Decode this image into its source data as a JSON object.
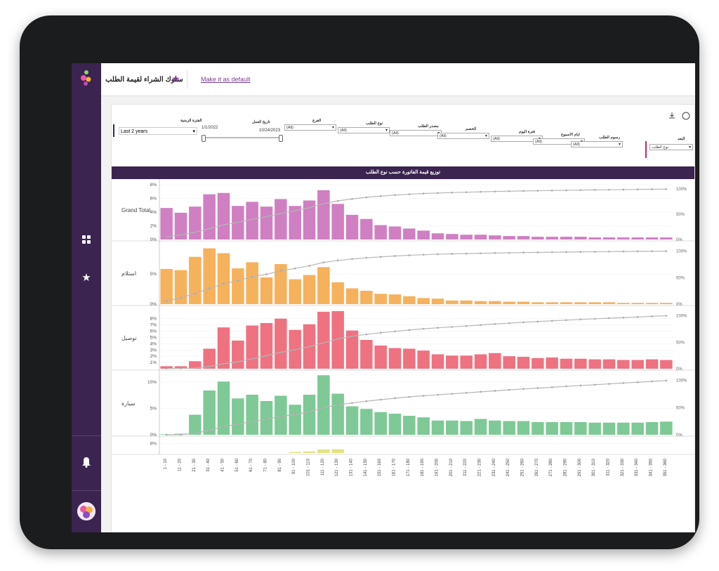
{
  "topbar": {
    "title": "سلوك الشراء لقيمة الطلب",
    "make_default": "Make it as default"
  },
  "filters": {
    "period_label": "الفترة الزمنية",
    "period_value": "Last 2 years",
    "date_label": "تاريخ العمل",
    "date_start": "1/1/2022",
    "date_end": "10/24/2023",
    "items": [
      {
        "label": "الفرع",
        "value": "(All)"
      },
      {
        "label": "نوع الطلب",
        "value": "(All)"
      },
      {
        "label": "مصدر الطلب",
        "value": "(All)"
      },
      {
        "label": "الخصم",
        "value": "(All)"
      },
      {
        "label": "فترة اليوم",
        "value": "(All)"
      },
      {
        "label": "ايام الاسبوع",
        "value": "(All)"
      },
      {
        "label": "رسوم الطلب",
        "value": "(All)"
      }
    ],
    "measure_label": "البعد",
    "measure_value": "نوع الطلب"
  },
  "chart_data": {
    "type": "bar",
    "title": "توزيع قيمة الفاتورة حسب نوع الطلب",
    "categories": [
      "1 - 10",
      "11 - 20",
      "21 - 30",
      "31 - 40",
      "41 - 50",
      "51 - 60",
      "61 - 70",
      "71 - 80",
      "81 - 90",
      "91 - 100",
      "101 - 110",
      "111 - 120",
      "121 - 130",
      "131 - 140",
      "141 - 150",
      "151 - 160",
      "161 - 170",
      "171 - 180",
      "181 - 190",
      "191 - 200",
      "201 - 210",
      "211 - 220",
      "221 - 230",
      "231 - 240",
      "241 - 250",
      "251 - 260",
      "261 - 270",
      "271 - 280",
      "281 - 290",
      "291 - 300",
      "301 - 310",
      "311 - 320",
      "321 - 330",
      "331 - 340",
      "341 - 350",
      "351 - 360"
    ],
    "series": [
      {
        "name": "Grand Total",
        "color": "#cf7fc2",
        "ticks": [
          "8%",
          "6%",
          "4%",
          "2%",
          "0%"
        ],
        "ymax": 8,
        "values": [
          4.6,
          3.9,
          4.8,
          6.6,
          6.8,
          4.9,
          5.5,
          4.8,
          5.9,
          4.9,
          5.7,
          7.2,
          5.2,
          3.6,
          3.0,
          2.1,
          1.9,
          1.6,
          1.3,
          0.9,
          0.8,
          0.7,
          0.7,
          0.6,
          0.5,
          0.5,
          0.4,
          0.4,
          0.4,
          0.4,
          0.3,
          0.3,
          0.3,
          0.3,
          0.3,
          0.3
        ]
      },
      {
        "name": "استلام",
        "color": "#f6b15c",
        "ticks": [
          "5%",
          "0%"
        ],
        "ymax": 9.5,
        "values": [
          5.8,
          5.6,
          7.8,
          9.2,
          8.4,
          5.9,
          6.9,
          4.4,
          6.6,
          4.1,
          4.8,
          6.1,
          3.6,
          2.6,
          2.2,
          1.7,
          1.6,
          1.3,
          1.0,
          0.9,
          0.6,
          0.6,
          0.5,
          0.5,
          0.4,
          0.4,
          0.3,
          0.3,
          0.3,
          0.3,
          0.3,
          0.3,
          0.2,
          0.2,
          0.2,
          0.2
        ]
      },
      {
        "name": "توصيل",
        "color": "#ee7280",
        "ticks": [
          "8%",
          "7%",
          "6%",
          "5%",
          "4%",
          "3%",
          "2%",
          "1%"
        ],
        "ymax": 9.2,
        "values": [
          0.4,
          0.4,
          1.2,
          3.2,
          6.6,
          4.5,
          6.9,
          7.3,
          8.0,
          6.2,
          7.1,
          9.1,
          9.2,
          6.1,
          4.6,
          3.7,
          3.3,
          3.2,
          2.9,
          2.3,
          2.1,
          2.1,
          2.3,
          2.5,
          2.0,
          1.9,
          1.7,
          1.8,
          1.6,
          1.6,
          1.5,
          1.5,
          1.4,
          1.4,
          1.5,
          1.4
        ]
      },
      {
        "name": "سيارة",
        "color": "#7ec995",
        "ticks": [
          "10%",
          "5%",
          "0%"
        ],
        "ymax": 11.2,
        "values": [
          0.1,
          0.2,
          3.8,
          8.4,
          10.1,
          6.9,
          7.6,
          6.4,
          7.4,
          5.7,
          7.6,
          11.3,
          7.8,
          5.4,
          4.9,
          4.3,
          4.0,
          3.6,
          3.3,
          2.7,
          2.7,
          2.6,
          3.0,
          2.7,
          2.6,
          2.6,
          2.4,
          2.4,
          2.4,
          2.4,
          2.3,
          2.3,
          2.3,
          2.3,
          2.4,
          2.5
        ]
      },
      {
        "name": "",
        "color": "#e2e283",
        "ticks": [
          "8%"
        ],
        "ymax": 9.5,
        "values": [
          0,
          0,
          0,
          0,
          0,
          0,
          0,
          0,
          0,
          0.9,
          1.3,
          3.1,
          3.2,
          0,
          0,
          0,
          0,
          0,
          0,
          0,
          0,
          0,
          0,
          0,
          0,
          0,
          0,
          0,
          0,
          0,
          0,
          0,
          0,
          0,
          0,
          0
        ]
      }
    ],
    "pareto_ticks": [
      "100%",
      "50%",
      "0%"
    ],
    "ylabel": "",
    "xlabel": ""
  },
  "colors": {
    "sidebar": "#3b2450",
    "accent": "#7a3b8f",
    "header": "#3b2450"
  }
}
